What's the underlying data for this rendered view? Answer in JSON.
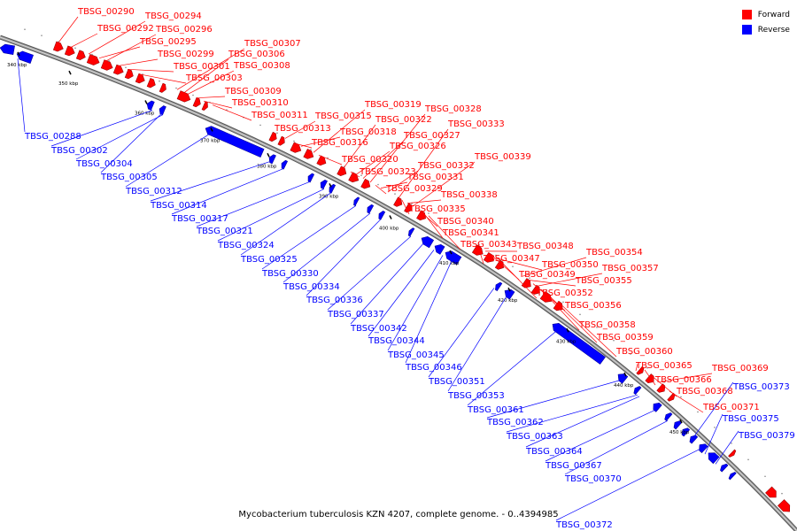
{
  "caption": "Mycobacterium tuberculosis KZN 4207, complete genome. - 0..4394985",
  "legend": [
    {
      "label": "Forward",
      "color": "#ff0000"
    },
    {
      "label": "Reverse",
      "color": "#0000ff"
    }
  ],
  "colors": {
    "forward": "#ff0000",
    "reverse": "#0000ff",
    "backbone": "#9a9a9a"
  },
  "ticks": [
    "340 kbp",
    "350 kbp",
    "360 kbp",
    "370 kbp",
    "380 kbp",
    "390 kbp",
    "400 kbp",
    "410 kbp",
    "420 kbp",
    "430 kbp",
    "440 kbp",
    "450 kbp"
  ],
  "forward_labels": [
    "TBSG_00290",
    "TBSG_00292",
    "TBSG_00294",
    "TBSG_00295",
    "TBSG_00296",
    "TBSG_00299",
    "TBSG_00301",
    "TBSG_00303",
    "TBSG_00306",
    "TBSG_00307",
    "TBSG_00308",
    "TBSG_00309",
    "TBSG_00310",
    "TBSG_00311",
    "TBSG_00313",
    "TBSG_00315",
    "TBSG_00316",
    "TBSG_00318",
    "TBSG_00319",
    "TBSG_00320",
    "TBSG_00322",
    "TBSG_00323",
    "TBSG_00326",
    "TBSG_00327",
    "TBSG_00328",
    "TBSG_00329",
    "TBSG_00331",
    "TBSG_00332",
    "TBSG_00333",
    "TBSG_00335",
    "TBSG_00338",
    "TBSG_00339",
    "TBSG_00340",
    "TBSG_00341",
    "TBSG_00343",
    "TBSG_00347",
    "TBSG_00348",
    "TBSG_00349",
    "TBSG_00350",
    "TBSG_00352",
    "TBSG_00354",
    "TBSG_00355",
    "TBSG_00356",
    "TBSG_00357",
    "TBSG_00358",
    "TBSG_00359",
    "TBSG_00360",
    "TBSG_00365",
    "TBSG_00366",
    "TBSG_00368",
    "TBSG_00369",
    "TBSG_00371"
  ],
  "reverse_labels": [
    "TBSG_00288",
    "TBSG_00302",
    "TBSG_00304",
    "TBSG_00305",
    "TBSG_00312",
    "TBSG_00314",
    "TBSG_00317",
    "TBSG_00321",
    "TBSG_00324",
    "TBSG_00325",
    "TBSG_00330",
    "TBSG_00334",
    "TBSG_00336",
    "TBSG_00337",
    "TBSG_00342",
    "TBSG_00344",
    "TBSG_00345",
    "TBSG_00346",
    "TBSG_00351",
    "TBSG_00353",
    "TBSG_00361",
    "TBSG_00362",
    "TBSG_00363",
    "TBSG_00364",
    "TBSG_00367",
    "TBSG_00370",
    "TBSG_00372",
    "TBSG_00373",
    "TBSG_00375",
    "TBSG_00379"
  ]
}
